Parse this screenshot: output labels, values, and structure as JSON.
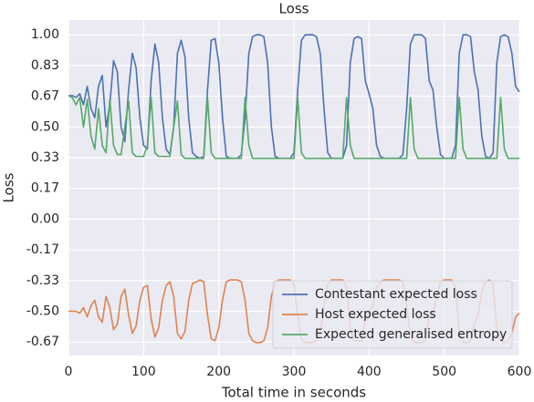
{
  "chart_data": {
    "type": "line",
    "title": "Loss",
    "xlabel": "Total time in seconds",
    "ylabel": "Loss",
    "x": [
      0,
      5,
      10,
      15,
      20,
      25,
      30,
      35,
      40,
      45,
      50,
      55,
      60,
      65,
      70,
      75,
      80,
      85,
      90,
      95,
      100,
      105,
      110,
      115,
      120,
      125,
      130,
      135,
      140,
      145,
      150,
      155,
      160,
      165,
      170,
      175,
      180,
      185,
      190,
      195,
      200,
      205,
      210,
      215,
      220,
      225,
      230,
      235,
      240,
      245,
      250,
      255,
      260,
      265,
      270,
      275,
      280,
      285,
      290,
      295,
      300,
      305,
      310,
      315,
      320,
      325,
      330,
      335,
      340,
      345,
      350,
      355,
      360,
      365,
      370,
      375,
      380,
      385,
      390,
      395,
      400,
      405,
      410,
      415,
      420,
      425,
      430,
      435,
      440,
      445,
      450,
      455,
      460,
      465,
      470,
      475,
      480,
      485,
      490,
      495,
      500,
      505,
      510,
      515,
      520,
      525,
      530,
      535,
      540,
      545,
      550,
      555,
      560,
      565,
      570,
      575,
      580,
      585,
      590,
      595,
      600
    ],
    "series": [
      {
        "name": "Contestant expected loss",
        "color": "#4c72b0",
        "values": [
          0.67,
          0.67,
          0.66,
          0.68,
          0.62,
          0.72,
          0.6,
          0.55,
          0.72,
          0.78,
          0.5,
          0.62,
          0.86,
          0.8,
          0.5,
          0.42,
          0.7,
          0.9,
          0.82,
          0.55,
          0.4,
          0.38,
          0.75,
          0.95,
          0.85,
          0.55,
          0.38,
          0.35,
          0.5,
          0.9,
          0.97,
          0.88,
          0.55,
          0.36,
          0.34,
          0.33,
          0.34,
          0.7,
          0.97,
          0.98,
          0.85,
          0.55,
          0.34,
          0.33,
          0.33,
          0.33,
          0.35,
          0.55,
          0.9,
          0.99,
          1.0,
          1.0,
          0.99,
          0.85,
          0.5,
          0.34,
          0.33,
          0.33,
          0.33,
          0.33,
          0.36,
          0.7,
          0.97,
          1.0,
          1.0,
          1.0,
          0.99,
          0.9,
          0.6,
          0.36,
          0.33,
          0.33,
          0.33,
          0.33,
          0.4,
          0.85,
          0.98,
          0.99,
          0.98,
          0.75,
          0.68,
          0.6,
          0.4,
          0.34,
          0.33,
          0.33,
          0.33,
          0.33,
          0.33,
          0.35,
          0.6,
          0.95,
          1.0,
          1.0,
          1.0,
          0.98,
          0.75,
          0.7,
          0.5,
          0.35,
          0.33,
          0.33,
          0.33,
          0.4,
          0.9,
          1.0,
          1.0,
          0.99,
          0.8,
          0.7,
          0.45,
          0.34,
          0.33,
          0.36,
          0.85,
          0.99,
          1.0,
          0.99,
          0.9,
          0.72,
          0.69
        ]
      },
      {
        "name": "Host expected loss",
        "color": "#dd8452",
        "values": [
          -0.5,
          -0.5,
          -0.5,
          -0.51,
          -0.48,
          -0.53,
          -0.47,
          -0.44,
          -0.53,
          -0.56,
          -0.42,
          -0.48,
          -0.6,
          -0.57,
          -0.42,
          -0.38,
          -0.52,
          -0.62,
          -0.58,
          -0.44,
          -0.37,
          -0.36,
          -0.54,
          -0.64,
          -0.59,
          -0.44,
          -0.36,
          -0.34,
          -0.42,
          -0.62,
          -0.65,
          -0.61,
          -0.44,
          -0.35,
          -0.34,
          -0.33,
          -0.34,
          -0.52,
          -0.65,
          -0.66,
          -0.59,
          -0.44,
          -0.34,
          -0.33,
          -0.33,
          -0.33,
          -0.34,
          -0.44,
          -0.62,
          -0.66,
          -0.67,
          -0.67,
          -0.66,
          -0.59,
          -0.42,
          -0.34,
          -0.33,
          -0.33,
          -0.33,
          -0.33,
          -0.35,
          -0.52,
          -0.65,
          -0.67,
          -0.67,
          -0.67,
          -0.66,
          -0.62,
          -0.47,
          -0.35,
          -0.33,
          -0.33,
          -0.33,
          -0.33,
          -0.37,
          -0.59,
          -0.66,
          -0.66,
          -0.66,
          -0.54,
          -0.51,
          -0.47,
          -0.37,
          -0.34,
          -0.33,
          -0.33,
          -0.33,
          -0.33,
          -0.33,
          -0.34,
          -0.47,
          -0.64,
          -0.67,
          -0.67,
          -0.67,
          -0.66,
          -0.54,
          -0.52,
          -0.42,
          -0.34,
          -0.33,
          -0.33,
          -0.33,
          -0.37,
          -0.62,
          -0.67,
          -0.67,
          -0.66,
          -0.57,
          -0.52,
          -0.39,
          -0.34,
          -0.33,
          -0.35,
          -0.59,
          -0.66,
          -0.67,
          -0.66,
          -0.62,
          -0.53,
          -0.51
        ]
      },
      {
        "name": "Expected generalised entropy",
        "color": "#55a868",
        "values": [
          0.67,
          0.66,
          0.62,
          0.66,
          0.5,
          0.65,
          0.45,
          0.38,
          0.6,
          0.4,
          0.36,
          0.65,
          0.4,
          0.35,
          0.35,
          0.5,
          0.64,
          0.36,
          0.34,
          0.34,
          0.34,
          0.4,
          0.66,
          0.36,
          0.34,
          0.34,
          0.34,
          0.34,
          0.5,
          0.64,
          0.35,
          0.33,
          0.33,
          0.33,
          0.33,
          0.33,
          0.33,
          0.66,
          0.36,
          0.33,
          0.33,
          0.33,
          0.33,
          0.33,
          0.33,
          0.33,
          0.33,
          0.66,
          0.4,
          0.33,
          0.33,
          0.33,
          0.33,
          0.33,
          0.33,
          0.33,
          0.33,
          0.33,
          0.33,
          0.33,
          0.33,
          0.66,
          0.36,
          0.33,
          0.33,
          0.33,
          0.33,
          0.33,
          0.33,
          0.33,
          0.33,
          0.33,
          0.33,
          0.33,
          0.66,
          0.4,
          0.33,
          0.33,
          0.33,
          0.33,
          0.33,
          0.33,
          0.33,
          0.33,
          0.33,
          0.33,
          0.33,
          0.33,
          0.33,
          0.33,
          0.33,
          0.66,
          0.38,
          0.33,
          0.33,
          0.33,
          0.33,
          0.33,
          0.33,
          0.33,
          0.33,
          0.33,
          0.33,
          0.33,
          0.66,
          0.38,
          0.33,
          0.33,
          0.33,
          0.33,
          0.33,
          0.33,
          0.33,
          0.33,
          0.33,
          0.66,
          0.38,
          0.33,
          0.33,
          0.33,
          0.33
        ]
      }
    ],
    "xlim": [
      0,
      600
    ],
    "xticks": [
      0,
      100,
      200,
      300,
      400,
      500,
      600
    ],
    "ylim": [
      -0.74,
      1.08
    ],
    "yticks": [
      {
        "value": 1.0,
        "label": "1.00"
      },
      {
        "value": 0.8333,
        "label": "0.83"
      },
      {
        "value": 0.6667,
        "label": "0.67"
      },
      {
        "value": 0.5,
        "label": "0.50"
      },
      {
        "value": 0.3333,
        "label": "0.33"
      },
      {
        "value": 0.1667,
        "label": "0.17"
      },
      {
        "value": 0.0,
        "label": "0.00"
      },
      {
        "value": -0.1667,
        "label": "-0.17"
      },
      {
        "value": -0.3333,
        "label": "-0.33"
      },
      {
        "value": -0.5,
        "label": "-0.50"
      },
      {
        "value": -0.6667,
        "label": "-0.67"
      }
    ],
    "grid": true,
    "legend": "lower right"
  }
}
